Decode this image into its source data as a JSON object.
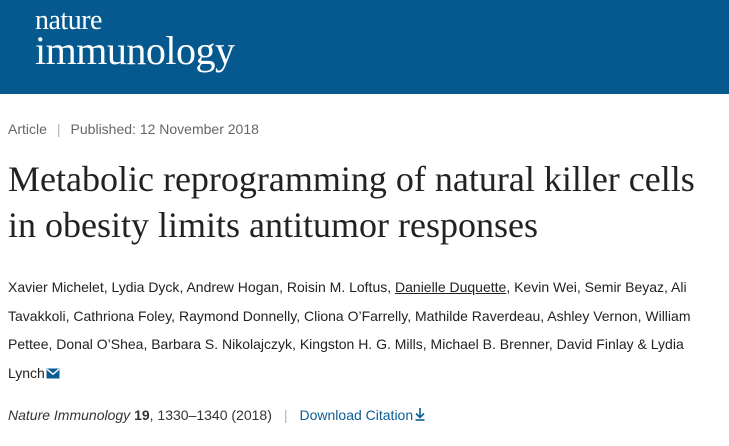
{
  "header": {
    "logo_line1": "nature",
    "logo_line2": "immunology",
    "background_color": "#06598f"
  },
  "meta": {
    "article_type": "Article",
    "published": "Published: 12 November 2018"
  },
  "title": "Metabolic reprogramming of natural killer cells in obesity limits antitumor responses",
  "authors": [
    "Xavier Michelet",
    "Lydia Dyck",
    "Andrew Hogan",
    "Roisin M. Loftus",
    "Danielle Duquette",
    "Kevin Wei",
    "Semir Beyaz",
    "Ali Tavakkoli",
    "Cathriona Foley",
    "Raymond Donnelly",
    "Cliona O’Farrelly",
    "Mathilde Raverdeau",
    "Ashley Vernon",
    "William Pettee",
    "Donal O’Shea",
    "Barbara S. Nikolajczyk",
    "Kingston H. G. Mills",
    "Michael B. Brenner",
    "David Finlay",
    "Lydia Lynch"
  ],
  "authors_last_joiner": "&",
  "corresponding_icon": "envelope-icon",
  "citation": {
    "journal": "Nature Immunology",
    "volume": "19",
    "pages_year": ", 1330–1340 (2018)",
    "download_label": "Download Citation",
    "download_icon": "download-arrow-icon",
    "link_color": "#0c5d96"
  }
}
